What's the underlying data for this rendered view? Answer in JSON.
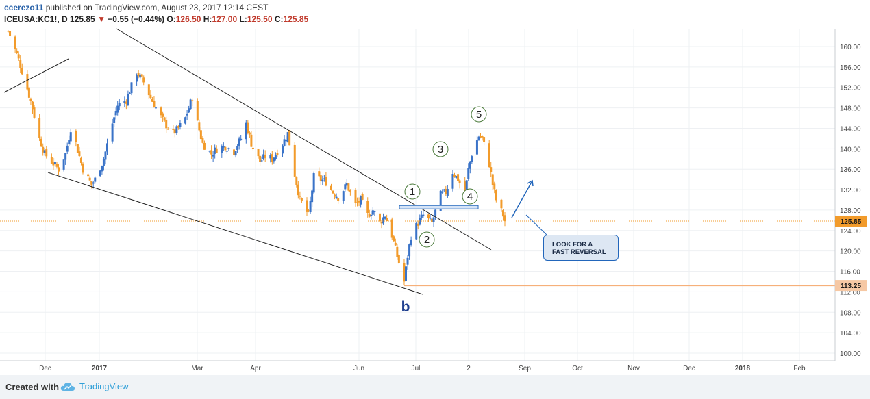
{
  "header": {
    "user": "ccerezo11",
    "published": "published on TradingView.com, August 23, 2017 12:14 CEST",
    "symbol": "ICEUSA:KC1!, D",
    "last": "125.85",
    "change_arrow": "▼",
    "change": "−0.55 (−0.44%)",
    "o_label": "O:",
    "o_value": "126.50",
    "h_label": "H:",
    "h_value": "127.00",
    "l_label": "L:",
    "l_value": "125.50",
    "c_label": "C:",
    "c_value": "125.85"
  },
  "footer": {
    "created": "Created with",
    "brand": "TradingView"
  },
  "callout": {
    "line1": "LOOK FOR A",
    "line2": "FAST REVERSAL"
  },
  "price_labels": {
    "current": "125.85",
    "level": "113.25"
  },
  "wave_labels": [
    "1",
    "2",
    "3",
    "4",
    "5",
    "b"
  ],
  "colors": {
    "up": "#3a73c8",
    "down": "#f29b2b",
    "trendline": "#222222",
    "current_price": "#f29b2b",
    "level_line": "#f6b07a",
    "annotation": "#2266bb",
    "wave_circle": "#4a7a3a",
    "b_label": "#1f3f8f"
  },
  "chart_data": {
    "type": "candlestick",
    "title": "",
    "ylim": [
      98,
      164
    ],
    "y_ticks": [
      "160.00",
      "156.00",
      "152.00",
      "148.00",
      "144.00",
      "140.00",
      "136.00",
      "132.00",
      "128.00",
      "124.00",
      "120.00",
      "116.00",
      "112.00",
      "108.00",
      "104.00",
      "100.00"
    ],
    "x_ticks": [
      "Dec",
      "2017",
      "Mar",
      "Apr",
      "Jun",
      "Jul",
      "2",
      "Sep",
      "Oct",
      "Nov",
      "Dec",
      "2018",
      "Feb"
    ],
    "current_price": 125.85,
    "horizontal_level": 113.25,
    "close_path": [
      [
        "2016-11-10",
        163
      ],
      [
        "2016-11-15",
        158.5
      ],
      [
        "2016-11-20",
        153
      ],
      [
        "2016-11-24",
        148
      ],
      [
        "2016-11-28",
        142
      ],
      [
        "2016-12-01",
        139
      ],
      [
        "2016-12-05",
        137.5
      ],
      [
        "2016-12-09",
        136
      ],
      [
        "2016-12-13",
        139
      ],
      [
        "2016-12-16",
        144
      ],
      [
        "2016-12-19",
        141
      ],
      [
        "2016-12-23",
        136
      ],
      [
        "2016-12-28",
        133
      ],
      [
        "2016-12-30",
        134
      ],
      [
        "2017-01-04",
        138
      ],
      [
        "2017-01-09",
        145
      ],
      [
        "2017-01-12",
        148.5
      ],
      [
        "2017-01-17",
        149.5
      ],
      [
        "2017-01-23",
        155
      ],
      [
        "2017-01-27",
        153
      ],
      [
        "2017-01-31",
        150
      ],
      [
        "2017-02-03",
        148
      ],
      [
        "2017-02-08",
        145
      ],
      [
        "2017-02-13",
        143
      ],
      [
        "2017-02-16",
        144
      ],
      [
        "2017-02-20",
        146
      ],
      [
        "2017-02-24",
        150
      ],
      [
        "2017-02-27",
        145
      ],
      [
        "2017-03-02",
        141
      ],
      [
        "2017-03-07",
        139
      ],
      [
        "2017-03-10",
        140
      ],
      [
        "2017-03-15",
        140.5
      ],
      [
        "2017-03-20",
        139.5
      ],
      [
        "2017-03-24",
        142
      ],
      [
        "2017-03-27",
        145
      ],
      [
        "2017-03-30",
        141
      ],
      [
        "2017-04-04",
        137.5
      ],
      [
        "2017-04-07",
        138.5
      ],
      [
        "2017-04-11",
        138
      ],
      [
        "2017-04-17",
        141
      ],
      [
        "2017-04-20",
        143
      ],
      [
        "2017-04-24",
        135
      ],
      [
        "2017-04-27",
        130
      ],
      [
        "2017-05-02",
        127
      ],
      [
        "2017-05-05",
        134.5
      ],
      [
        "2017-05-09",
        134
      ],
      [
        "2017-05-12",
        133.5
      ],
      [
        "2017-05-16",
        131.5
      ],
      [
        "2017-05-19",
        130.5
      ],
      [
        "2017-05-24",
        133
      ],
      [
        "2017-05-29",
        129
      ],
      [
        "2017-06-01",
        130
      ],
      [
        "2017-06-05",
        127
      ],
      [
        "2017-06-08",
        128
      ],
      [
        "2017-06-12",
        125.5
      ],
      [
        "2017-06-15",
        127
      ],
      [
        "2017-06-19",
        123
      ],
      [
        "2017-06-22",
        119
      ],
      [
        "2017-06-26",
        114
      ],
      [
        "2017-06-28",
        119
      ],
      [
        "2017-06-30",
        123
      ],
      [
        "2017-07-04",
        125.5
      ],
      [
        "2017-07-07",
        127
      ],
      [
        "2017-07-12",
        125.5
      ],
      [
        "2017-07-17",
        131
      ],
      [
        "2017-07-20",
        131.5
      ],
      [
        "2017-07-24",
        135.5
      ],
      [
        "2017-07-27",
        134
      ],
      [
        "2017-07-31",
        131
      ],
      [
        "2017-08-02",
        136
      ],
      [
        "2017-08-04",
        139
      ],
      [
        "2017-08-08",
        142.5
      ],
      [
        "2017-08-10",
        142
      ],
      [
        "2017-08-14",
        137
      ],
      [
        "2017-08-16",
        133
      ],
      [
        "2017-08-18",
        130
      ],
      [
        "2017-08-22",
        127
      ],
      [
        "2017-08-23",
        125.85
      ]
    ]
  }
}
